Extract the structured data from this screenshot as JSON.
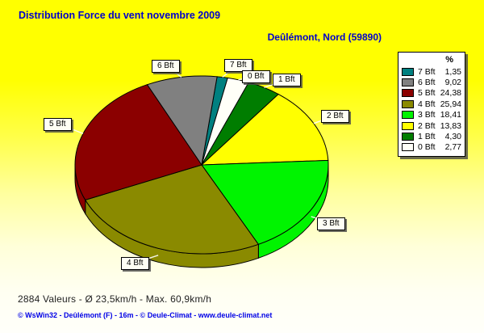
{
  "title": "Distribution Force du vent  novembre 2009",
  "subtitle": "Deûlémont, Nord (59890)",
  "legend": {
    "header": "%"
  },
  "footer": {
    "stats": "2884 Valeurs   -   Ø 23,5km/h  -  Max. 60,9km/h",
    "credits": "© WsWin32   -   Deûlémont (F) - 16m   -   © Deule-Climat - www.deule-climat.net"
  },
  "colors": {
    "title_blue": "#0000cc",
    "credits_blue": "#0000e6",
    "background_top": "#ffff00",
    "background_bottom": "#fffffa",
    "callout_bg": "#fffff4",
    "leader_line": "#ffffff"
  },
  "chart_data": {
    "type": "pie",
    "style": "3d-pie",
    "title": "Distribution Force du vent  novembre 2009",
    "subtitle": "Deûlémont, Nord (59890)",
    "unit": "%",
    "legend_position": "top-right",
    "slices": [
      {
        "label": "7 Bft",
        "value": 1.35,
        "display": "1,35",
        "color": "#008080"
      },
      {
        "label": "6 Bft",
        "value": 9.02,
        "display": "9,02",
        "color": "#808080"
      },
      {
        "label": "5 Bft",
        "value": 24.38,
        "display": "24,38",
        "color": "#8b0000"
      },
      {
        "label": "4 Bft",
        "value": 25.94,
        "display": "25,94",
        "color": "#8a8a00"
      },
      {
        "label": "3 Bft",
        "value": 18.41,
        "display": "18,41",
        "color": "#00f400"
      },
      {
        "label": "2 Bft",
        "value": 13.83,
        "display": "13,83",
        "color": "#ffff00"
      },
      {
        "label": "1 Bft",
        "value": 4.3,
        "display": "4,30",
        "color": "#007d00"
      },
      {
        "label": "0 Bft",
        "value": 2.77,
        "display": "2,77",
        "color": "#fffff8"
      }
    ],
    "draw_order": [
      "7 Bft",
      "0 Bft",
      "1 Bft",
      "2 Bft",
      "3 Bft",
      "4 Bft",
      "5 Bft",
      "6 Bft"
    ],
    "start_angle_deg": -83
  }
}
